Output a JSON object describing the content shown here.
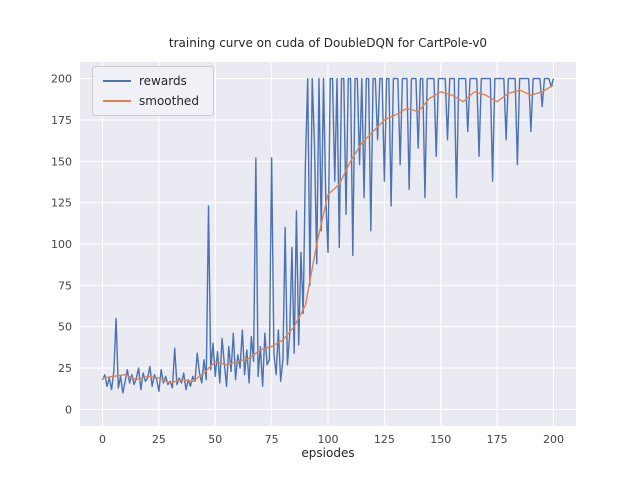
{
  "chart_data": {
    "type": "line",
    "title": "training curve on cuda of DoubleDQN for CartPole-v0",
    "xlabel": "epsiodes",
    "ylabel": "",
    "xlim": [
      -10,
      210
    ],
    "ylim": [
      -10,
      210
    ],
    "xticks": [
      0,
      25,
      50,
      75,
      100,
      125,
      150,
      175,
      200
    ],
    "yticks": [
      0,
      25,
      50,
      75,
      100,
      125,
      150,
      175,
      200
    ],
    "grid": true,
    "bg_color": "#eaeaf2",
    "grid_color": "#ffffff",
    "tick_color": "#444444",
    "legend_position": "upper left",
    "series": [
      {
        "name": "rewards",
        "color": "#4c72b0",
        "x_start": 0,
        "x_step": 1,
        "y": [
          18,
          21,
          14,
          19,
          12,
          23,
          55,
          13,
          20,
          10,
          17,
          24,
          16,
          21,
          15,
          19,
          25,
          12,
          22,
          17,
          19,
          26,
          14,
          21,
          18,
          11,
          24,
          16,
          20,
          15,
          17,
          13,
          37,
          15,
          19,
          16,
          22,
          12,
          18,
          14,
          20,
          17,
          34,
          22,
          16,
          30,
          18,
          123,
          24,
          40,
          20,
          35,
          16,
          43,
          28,
          14,
          38,
          23,
          46,
          18,
          33,
          25,
          48,
          21,
          36,
          16,
          44,
          29,
          152,
          20,
          38,
          14,
          46,
          27,
          30,
          152,
          34,
          21,
          48,
          17,
          30,
          110,
          27,
          45,
          98,
          34,
          120,
          39,
          95,
          58,
          150,
          200,
          75,
          200,
          160,
          88,
          200,
          108,
          200,
          128,
          95,
          200,
          200,
          138,
          200,
          98,
          200,
          200,
          118,
          200,
          200,
          93,
          200,
          200,
          148,
          200,
          128,
          200,
          200,
          108,
          200,
          200,
          163,
          200,
          200,
          138,
          200,
          200,
          123,
          200,
          200,
          200,
          148,
          200,
          200,
          200,
          133,
          200,
          200,
          200,
          158,
          200,
          200,
          128,
          200,
          200,
          200,
          200,
          153,
          200,
          200,
          200,
          200,
          163,
          200,
          200,
          200,
          128,
          200,
          200,
          200,
          200,
          168,
          200,
          200,
          200,
          200,
          153,
          200,
          200,
          200,
          200,
          200,
          138,
          200,
          200,
          200,
          200,
          200,
          163,
          200,
          200,
          200,
          200,
          148,
          200,
          200,
          200,
          200,
          200,
          168,
          200,
          200,
          200,
          200,
          183,
          200,
          200,
          200,
          195,
          200
        ]
      },
      {
        "name": "smoothed",
        "color": "#dd8452",
        "x_start": 0,
        "x_step": 5,
        "y": [
          19,
          20,
          21,
          18,
          20,
          19,
          16,
          18,
          17,
          22,
          29,
          27,
          29,
          31,
          36,
          38,
          42,
          50,
          63,
          100,
          130,
          136,
          150,
          161,
          168,
          175,
          178,
          182,
          180,
          188,
          192,
          190,
          186,
          192,
          190,
          186,
          191,
          193,
          190,
          192,
          196
        ]
      }
    ]
  }
}
